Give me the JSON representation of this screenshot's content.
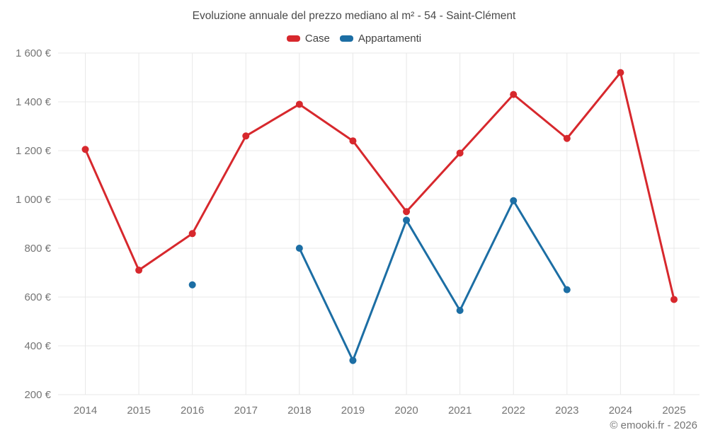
{
  "page": {
    "title": "Evoluzione annuale del prezzo mediano al m² - 54 - Saint-Clément",
    "copyright": "© emooki.fr - 2026"
  },
  "colors": {
    "case_red": "#d7282d",
    "appartamenti_blue": "#1c6ea4",
    "grid": "#e8e8e8",
    "tick_label": "#757575",
    "title_text": "#4a4a4a"
  },
  "chart_data": {
    "type": "line",
    "title": "Evoluzione annuale del prezzo mediano al m² - 54 - Saint-Clément",
    "x": [
      2014,
      2015,
      2016,
      2017,
      2018,
      2019,
      2020,
      2021,
      2022,
      2023,
      2024,
      2025
    ],
    "series": [
      {
        "name": "Case",
        "color": "#d7282d",
        "values": [
          1205,
          710,
          860,
          1260,
          1390,
          1240,
          950,
          1190,
          1430,
          1250,
          1520,
          590
        ]
      },
      {
        "name": "Appartamenti",
        "color": "#1c6ea4",
        "values": [
          null,
          null,
          650,
          null,
          800,
          340,
          915,
          545,
          995,
          630,
          null,
          null
        ]
      }
    ],
    "xlabel": "",
    "ylabel": "",
    "ylim": [
      200,
      1600
    ],
    "ytick_step": 200,
    "ytick_labels": [
      "200 €",
      "400 €",
      "600 €",
      "800 €",
      "1 000 €",
      "1 200 €",
      "1 400 €",
      "1 600 €"
    ],
    "grid": true,
    "legend_position": "top"
  }
}
